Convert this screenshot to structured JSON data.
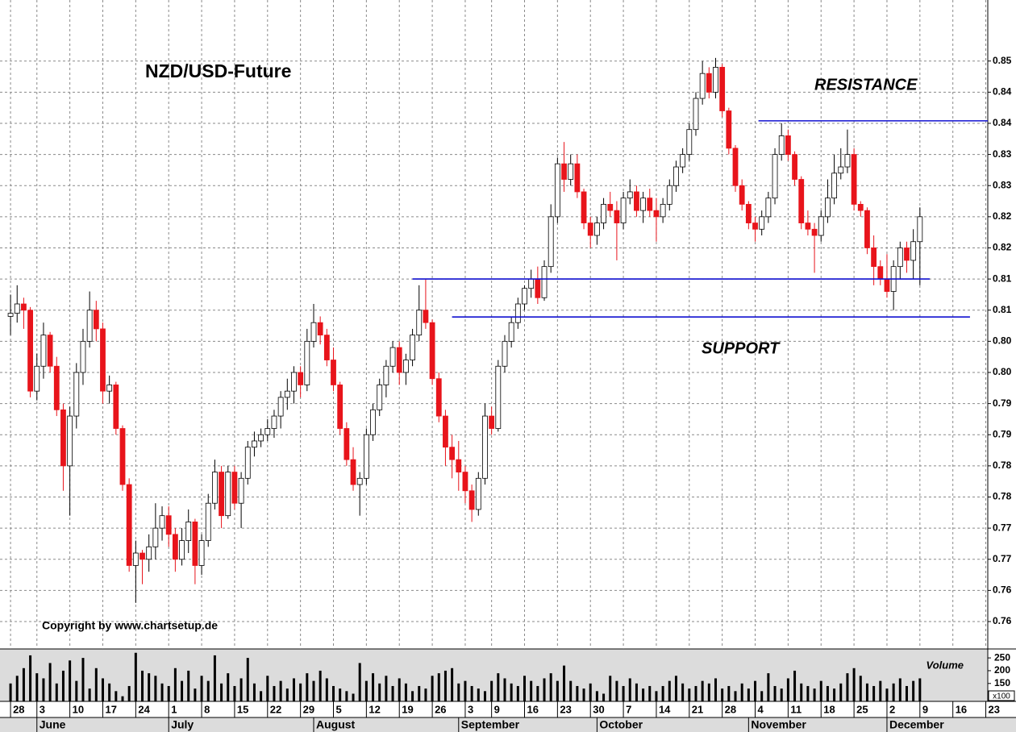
{
  "chart_data": [
    {
      "type": "candlestick",
      "title": "NZD/USD-Future",
      "annotations": [
        "RESISTANCE",
        "SUPPORT"
      ],
      "copyright": "Copyright by www.chartsetup.de",
      "up_color": "#ffffff",
      "down_color": "#e8141b",
      "line_color": "#1010d0",
      "grid": true,
      "ylim": [
        0.7506,
        0.8548
      ],
      "xlim": [
        -1.6,
        148.3
      ],
      "yticks": [
        {
          "value": 0.845,
          "label": "0.85"
        },
        {
          "value": 0.84,
          "label": "0.84"
        },
        {
          "value": 0.835,
          "label": "0.84"
        },
        {
          "value": 0.83,
          "label": "0.83"
        },
        {
          "value": 0.825,
          "label": "0.83"
        },
        {
          "value": 0.82,
          "label": "0.82"
        },
        {
          "value": 0.815,
          "label": "0.82"
        },
        {
          "value": 0.81,
          "label": "0.81"
        },
        {
          "value": 0.805,
          "label": "0.81"
        },
        {
          "value": 0.8,
          "label": "0.80"
        },
        {
          "value": 0.795,
          "label": "0.80"
        },
        {
          "value": 0.79,
          "label": "0.79"
        },
        {
          "value": 0.785,
          "label": "0.79"
        },
        {
          "value": 0.78,
          "label": "0.78"
        },
        {
          "value": 0.775,
          "label": "0.78"
        },
        {
          "value": 0.77,
          "label": "0.77"
        },
        {
          "value": 0.765,
          "label": "0.77"
        },
        {
          "value": 0.76,
          "label": "0.76"
        },
        {
          "value": 0.755,
          "label": "0.76"
        }
      ],
      "xticks": [
        {
          "value": 0,
          "label": "28"
        },
        {
          "value": 4,
          "label": "3"
        },
        {
          "value": 9,
          "label": "10"
        },
        {
          "value": 14,
          "label": "17"
        },
        {
          "value": 19,
          "label": "24"
        },
        {
          "value": 24,
          "label": "1"
        },
        {
          "value": 29,
          "label": "8"
        },
        {
          "value": 34,
          "label": "15"
        },
        {
          "value": 39,
          "label": "22"
        },
        {
          "value": 44,
          "label": "29"
        },
        {
          "value": 49,
          "label": "5"
        },
        {
          "value": 54,
          "label": "12"
        },
        {
          "value": 59,
          "label": "19"
        },
        {
          "value": 64,
          "label": "26"
        },
        {
          "value": 69,
          "label": "3"
        },
        {
          "value": 73,
          "label": "9"
        },
        {
          "value": 78,
          "label": "16"
        },
        {
          "value": 83,
          "label": "23"
        },
        {
          "value": 88,
          "label": "30"
        },
        {
          "value": 93,
          "label": "7"
        },
        {
          "value": 98,
          "label": "14"
        },
        {
          "value": 103,
          "label": "21"
        },
        {
          "value": 108,
          "label": "28"
        },
        {
          "value": 113,
          "label": "4"
        },
        {
          "value": 118,
          "label": "11"
        },
        {
          "value": 123,
          "label": "18"
        },
        {
          "value": 128,
          "label": "25"
        },
        {
          "value": 133,
          "label": "2"
        },
        {
          "value": 138,
          "label": "9"
        },
        {
          "value": 143,
          "label": "16"
        },
        {
          "value": 148,
          "label": "23"
        }
      ],
      "months": [
        {
          "value": 4,
          "label": "June"
        },
        {
          "value": 24,
          "label": "July"
        },
        {
          "value": 46,
          "label": "August"
        },
        {
          "value": 68,
          "label": "September"
        },
        {
          "value": 89,
          "label": "October"
        },
        {
          "value": 112,
          "label": "November"
        },
        {
          "value": 133,
          "label": "December"
        }
      ],
      "lines": [
        {
          "x": [
            113.5,
            148.3
          ],
          "value": 0.8354
        },
        {
          "x": [
            61,
            139.5
          ],
          "value": 0.81
        },
        {
          "x": [
            67,
            145.6
          ],
          "value": 0.8039
        }
      ],
      "ohlc": [
        [
          0.804,
          0.8075,
          0.801,
          0.8045
        ],
        [
          0.8045,
          0.809,
          0.803,
          0.806
        ],
        [
          0.806,
          0.807,
          0.802,
          0.805
        ],
        [
          0.805,
          0.8055,
          0.791,
          0.792
        ],
        [
          0.792,
          0.798,
          0.7905,
          0.796
        ],
        [
          0.796,
          0.803,
          0.794,
          0.801
        ],
        [
          0.801,
          0.8015,
          0.795,
          0.796
        ],
        [
          0.796,
          0.7975,
          0.788,
          0.789
        ],
        [
          0.789,
          0.79,
          0.776,
          0.78
        ],
        [
          0.78,
          0.7895,
          0.772,
          0.788
        ],
        [
          0.788,
          0.7965,
          0.786,
          0.795
        ],
        [
          0.795,
          0.802,
          0.793,
          0.8
        ],
        [
          0.8,
          0.808,
          0.799,
          0.805
        ],
        [
          0.805,
          0.8065,
          0.8,
          0.802
        ],
        [
          0.802,
          0.803,
          0.79,
          0.792
        ],
        [
          0.792,
          0.7945,
          0.79,
          0.793
        ],
        [
          0.793,
          0.7935,
          0.785,
          0.786
        ],
        [
          0.786,
          0.7865,
          0.776,
          0.777
        ],
        [
          0.777,
          0.778,
          0.763,
          0.764
        ],
        [
          0.764,
          0.768,
          0.758,
          0.766
        ],
        [
          0.766,
          0.7665,
          0.761,
          0.765
        ],
        [
          0.765,
          0.769,
          0.763,
          0.767
        ],
        [
          0.767,
          0.774,
          0.765,
          0.77
        ],
        [
          0.77,
          0.7735,
          0.768,
          0.772
        ],
        [
          0.772,
          0.7735,
          0.767,
          0.769
        ],
        [
          0.769,
          0.77,
          0.763,
          0.765
        ],
        [
          0.765,
          0.77,
          0.764,
          0.768
        ],
        [
          0.768,
          0.773,
          0.766,
          0.771
        ],
        [
          0.771,
          0.7715,
          0.761,
          0.764
        ],
        [
          0.764,
          0.769,
          0.7625,
          0.768
        ],
        [
          0.768,
          0.7755,
          0.767,
          0.774
        ],
        [
          0.774,
          0.781,
          0.773,
          0.779
        ],
        [
          0.779,
          0.78,
          0.77,
          0.772
        ],
        [
          0.772,
          0.78,
          0.7715,
          0.779
        ],
        [
          0.779,
          0.78,
          0.773,
          0.774
        ],
        [
          0.774,
          0.779,
          0.77,
          0.778
        ],
        [
          0.778,
          0.784,
          0.777,
          0.783
        ],
        [
          0.783,
          0.7855,
          0.7815,
          0.784
        ],
        [
          0.784,
          0.786,
          0.783,
          0.785
        ],
        [
          0.785,
          0.7875,
          0.784,
          0.786
        ],
        [
          0.786,
          0.789,
          0.7845,
          0.788
        ],
        [
          0.788,
          0.792,
          0.786,
          0.791
        ],
        [
          0.791,
          0.794,
          0.789,
          0.792
        ],
        [
          0.792,
          0.796,
          0.79,
          0.795
        ],
        [
          0.795,
          0.796,
          0.791,
          0.793
        ],
        [
          0.793,
          0.802,
          0.792,
          0.8
        ],
        [
          0.8,
          0.806,
          0.799,
          0.803
        ],
        [
          0.803,
          0.804,
          0.7995,
          0.801
        ],
        [
          0.801,
          0.802,
          0.796,
          0.797
        ],
        [
          0.797,
          0.799,
          0.792,
          0.793
        ],
        [
          0.793,
          0.7935,
          0.785,
          0.786
        ],
        [
          0.786,
          0.787,
          0.78,
          0.781
        ],
        [
          0.781,
          0.783,
          0.776,
          0.777
        ],
        [
          0.777,
          0.779,
          0.772,
          0.778
        ],
        [
          0.778,
          0.786,
          0.777,
          0.785
        ],
        [
          0.785,
          0.79,
          0.784,
          0.789
        ],
        [
          0.789,
          0.794,
          0.788,
          0.793
        ],
        [
          0.793,
          0.797,
          0.791,
          0.796
        ],
        [
          0.796,
          0.8,
          0.795,
          0.799
        ],
        [
          0.799,
          0.8,
          0.793,
          0.795
        ],
        [
          0.795,
          0.798,
          0.793,
          0.797
        ],
        [
          0.797,
          0.802,
          0.796,
          0.801
        ],
        [
          0.801,
          0.809,
          0.8,
          0.805
        ],
        [
          0.805,
          0.81,
          0.802,
          0.803
        ],
        [
          0.803,
          0.8035,
          0.793,
          0.794
        ],
        [
          0.794,
          0.795,
          0.787,
          0.788
        ],
        [
          0.788,
          0.789,
          0.78,
          0.783
        ],
        [
          0.783,
          0.785,
          0.778,
          0.781
        ],
        [
          0.781,
          0.784,
          0.776,
          0.779
        ],
        [
          0.779,
          0.78,
          0.774,
          0.776
        ],
        [
          0.776,
          0.777,
          0.771,
          0.773
        ],
        [
          0.773,
          0.779,
          0.772,
          0.778
        ],
        [
          0.778,
          0.79,
          0.777,
          0.788
        ],
        [
          0.788,
          0.7895,
          0.785,
          0.786
        ],
        [
          0.786,
          0.797,
          0.7855,
          0.796
        ],
        [
          0.796,
          0.801,
          0.795,
          0.8
        ],
        [
          0.8,
          0.804,
          0.799,
          0.803
        ],
        [
          0.803,
          0.807,
          0.802,
          0.806
        ],
        [
          0.806,
          0.809,
          0.805,
          0.8085
        ],
        [
          0.8085,
          0.8115,
          0.807,
          0.81
        ],
        [
          0.81,
          0.812,
          0.806,
          0.807
        ],
        [
          0.807,
          0.813,
          0.8065,
          0.812
        ],
        [
          0.812,
          0.822,
          0.811,
          0.82
        ],
        [
          0.82,
          0.8295,
          0.819,
          0.8285
        ],
        [
          0.8285,
          0.832,
          0.824,
          0.826
        ],
        [
          0.826,
          0.83,
          0.825,
          0.8285
        ],
        [
          0.8285,
          0.83,
          0.823,
          0.824
        ],
        [
          0.824,
          0.8245,
          0.818,
          0.819
        ],
        [
          0.819,
          0.82,
          0.815,
          0.817
        ],
        [
          0.817,
          0.82,
          0.8155,
          0.819
        ],
        [
          0.819,
          0.823,
          0.818,
          0.822
        ],
        [
          0.822,
          0.824,
          0.82,
          0.821
        ],
        [
          0.821,
          0.8225,
          0.813,
          0.819
        ],
        [
          0.819,
          0.824,
          0.818,
          0.823
        ],
        [
          0.823,
          0.826,
          0.822,
          0.824
        ],
        [
          0.824,
          0.825,
          0.82,
          0.821
        ],
        [
          0.821,
          0.824,
          0.819,
          0.823
        ],
        [
          0.823,
          0.8245,
          0.82,
          0.821
        ],
        [
          0.821,
          0.823,
          0.816,
          0.82
        ],
        [
          0.82,
          0.823,
          0.819,
          0.822
        ],
        [
          0.822,
          0.826,
          0.821,
          0.825
        ],
        [
          0.825,
          0.829,
          0.824,
          0.828
        ],
        [
          0.828,
          0.831,
          0.827,
          0.83
        ],
        [
          0.83,
          0.835,
          0.829,
          0.834
        ],
        [
          0.834,
          0.84,
          0.833,
          0.839
        ],
        [
          0.839,
          0.845,
          0.838,
          0.843
        ],
        [
          0.843,
          0.844,
          0.839,
          0.84
        ],
        [
          0.84,
          0.8455,
          0.839,
          0.844
        ],
        [
          0.844,
          0.8445,
          0.836,
          0.837
        ],
        [
          0.837,
          0.8375,
          0.83,
          0.831
        ],
        [
          0.831,
          0.8315,
          0.824,
          0.825
        ],
        [
          0.825,
          0.826,
          0.821,
          0.822
        ],
        [
          0.822,
          0.8225,
          0.818,
          0.819
        ],
        [
          0.819,
          0.82,
          0.816,
          0.818
        ],
        [
          0.818,
          0.821,
          0.817,
          0.82
        ],
        [
          0.82,
          0.824,
          0.819,
          0.823
        ],
        [
          0.823,
          0.831,
          0.822,
          0.83
        ],
        [
          0.83,
          0.835,
          0.829,
          0.833
        ],
        [
          0.833,
          0.834,
          0.829,
          0.83
        ],
        [
          0.83,
          0.8305,
          0.825,
          0.826
        ],
        [
          0.826,
          0.8265,
          0.818,
          0.819
        ],
        [
          0.819,
          0.821,
          0.817,
          0.818
        ],
        [
          0.818,
          0.819,
          0.811,
          0.817
        ],
        [
          0.817,
          0.821,
          0.816,
          0.82
        ],
        [
          0.82,
          0.826,
          0.819,
          0.823
        ],
        [
          0.823,
          0.83,
          0.822,
          0.827
        ],
        [
          0.827,
          0.831,
          0.826,
          0.828
        ],
        [
          0.828,
          0.834,
          0.827,
          0.83
        ],
        [
          0.83,
          0.831,
          0.821,
          0.822
        ],
        [
          0.822,
          0.8225,
          0.82,
          0.821
        ],
        [
          0.821,
          0.8215,
          0.814,
          0.815
        ],
        [
          0.815,
          0.817,
          0.809,
          0.812
        ],
        [
          0.812,
          0.813,
          0.809,
          0.81
        ],
        [
          0.81,
          0.814,
          0.807,
          0.808
        ],
        [
          0.808,
          0.813,
          0.805,
          0.812
        ],
        [
          0.812,
          0.816,
          0.81,
          0.815
        ],
        [
          0.815,
          0.816,
          0.811,
          0.813
        ],
        [
          0.813,
          0.818,
          0.81,
          0.816
        ],
        [
          0.816,
          0.8215,
          0.809,
          0.82
        ]
      ]
    },
    {
      "type": "bar",
      "title": "Volume",
      "unit": "x100",
      "color": "#000000",
      "ylim": [
        80,
        285
      ],
      "yticks": [
        150,
        200,
        250
      ],
      "values": [
        150,
        180,
        210,
        260,
        190,
        170,
        230,
        150,
        200,
        240,
        160,
        250,
        130,
        210,
        170,
        150,
        120,
        100,
        140,
        270,
        200,
        190,
        180,
        150,
        140,
        210,
        160,
        200,
        130,
        180,
        160,
        260,
        150,
        190,
        140,
        170,
        250,
        150,
        120,
        180,
        140,
        160,
        130,
        170,
        150,
        190,
        160,
        200,
        170,
        140,
        130,
        120,
        110,
        230,
        160,
        190,
        150,
        180,
        140,
        170,
        150,
        120,
        140,
        130,
        180,
        190,
        200,
        210,
        150,
        160,
        140,
        130,
        120,
        160,
        190,
        170,
        150,
        140,
        180,
        160,
        140,
        170,
        190,
        160,
        220,
        160,
        140,
        130,
        150,
        120,
        110,
        180,
        160,
        140,
        170,
        150,
        130,
        140,
        120,
        140,
        160,
        180,
        150,
        130,
        140,
        160,
        150,
        170,
        130,
        140,
        120,
        150,
        130,
        160,
        120,
        190,
        140,
        130,
        170,
        200,
        150,
        140,
        130,
        160,
        140,
        130,
        150,
        190,
        210,
        180,
        150,
        140,
        160,
        130,
        150,
        170,
        140,
        160,
        170
      ]
    }
  ]
}
